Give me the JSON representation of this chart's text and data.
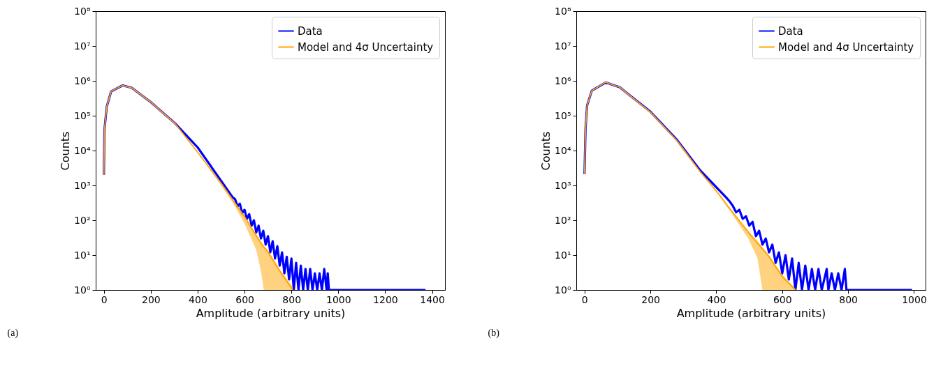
{
  "chart_data": [
    {
      "type": "line",
      "xlabel": "Amplitude (arbitrary units)",
      "ylabel": "Counts",
      "log": "y",
      "legend": "top right",
      "annotations": [
        "(a)"
      ],
      "xlim": [
        -35,
        1455
      ],
      "xticks": [
        0,
        200,
        400,
        600,
        800,
        1000,
        1200,
        1400
      ],
      "ylim": [
        1,
        100000000
      ],
      "yticks": [
        {
          "value": 1,
          "label": "10⁰"
        },
        {
          "value": 10,
          "label": "10¹"
        },
        {
          "value": 100,
          "label": "10²"
        },
        {
          "value": 1000,
          "label": "10³"
        },
        {
          "value": 10000,
          "label": "10⁴"
        },
        {
          "value": 100000,
          "label": "10⁵"
        },
        {
          "value": 1000000,
          "label": "10⁶"
        },
        {
          "value": 10000000,
          "label": "10⁷"
        },
        {
          "value": 100000000,
          "label": "10⁸"
        }
      ],
      "series": [
        {
          "name": "Data",
          "color": "#0000ff",
          "x": [
            0,
            2,
            12,
            31,
            80,
            119,
            200,
            304,
            400,
            450,
            500,
            550,
            560,
            570,
            580,
            590,
            600,
            610,
            620,
            630,
            640,
            650,
            660,
            670,
            680,
            690,
            700,
            710,
            720,
            730,
            740,
            750,
            760,
            770,
            780,
            790,
            800,
            810,
            820,
            830,
            840,
            850,
            860,
            870,
            880,
            890,
            900,
            910,
            920,
            930,
            940,
            950,
            955,
            960,
            1372
          ],
          "values": [
            2000,
            37000,
            180000,
            500000,
            740000,
            630000,
            245000,
            60000,
            12300,
            4100,
            1350,
            450,
            400,
            250,
            300,
            160,
            200,
            110,
            150,
            70,
            100,
            45,
            70,
            30,
            50,
            20,
            35,
            12,
            25,
            8,
            18,
            5,
            12,
            3,
            9,
            2,
            8,
            1,
            6,
            1,
            5,
            1,
            4,
            1,
            4,
            1,
            3,
            1,
            3,
            1,
            4,
            1,
            3,
            1,
            1
          ]
        },
        {
          "name": "Model and 4σ Uncertainty",
          "color": "#ffa500",
          "x": [
            0,
            2,
            12,
            31,
            80,
            119,
            200,
            304,
            400,
            450,
            500,
            550,
            600,
            650,
            670,
            682,
            700,
            750,
            806
          ],
          "values": [
            2000,
            37000,
            180000,
            500000,
            740000,
            630000,
            245000,
            59000,
            8900,
            3200,
            1150,
            380,
            126,
            36,
            22,
            17,
            12,
            3.5,
            1
          ],
          "lower": [
            2000,
            37000,
            180000,
            500000,
            740000,
            630000,
            245000,
            59000,
            8900,
            3000,
            1000,
            320,
            80,
            14,
            3.5,
            1,
            1,
            1,
            1
          ],
          "upper": [
            2000,
            37000,
            180000,
            500000,
            740000,
            630000,
            245000,
            59000,
            8900,
            3300,
            1200,
            400,
            135,
            40,
            25,
            19,
            14,
            4,
            1.2
          ]
        }
      ]
    },
    {
      "type": "line",
      "xlabel": "Amplitude (arbitrary units)",
      "ylabel": "Counts",
      "log": "y",
      "legend": "top right",
      "annotations": [
        "(b)"
      ],
      "xlim": [
        -25,
        1035
      ],
      "xticks": [
        0,
        200,
        400,
        600,
        800,
        1000
      ],
      "ylim": [
        1,
        100000000
      ],
      "yticks": [
        {
          "value": 1,
          "label": "10⁰"
        },
        {
          "value": 10,
          "label": "10¹"
        },
        {
          "value": 100,
          "label": "10²"
        },
        {
          "value": 1000,
          "label": "10³"
        },
        {
          "value": 10000,
          "label": "10⁴"
        },
        {
          "value": 100000,
          "label": "10⁵"
        },
        {
          "value": 1000000,
          "label": "10⁶"
        },
        {
          "value": 10000000,
          "label": "10⁷"
        },
        {
          "value": 100000000,
          "label": "10⁸"
        }
      ],
      "series": [
        {
          "name": "Data",
          "color": "#0000ff",
          "x": [
            0,
            3,
            8,
            22,
            64,
            106,
            200,
            281,
            351,
            400,
            430,
            440,
            450,
            460,
            470,
            480,
            490,
            500,
            510,
            520,
            530,
            540,
            550,
            560,
            570,
            580,
            590,
            600,
            610,
            620,
            630,
            640,
            650,
            660,
            670,
            680,
            690,
            700,
            710,
            720,
            735,
            740,
            750,
            760,
            770,
            780,
            790,
            795,
            994
          ],
          "values": [
            2100,
            42000,
            200000,
            520000,
            900000,
            660000,
            130000,
            20000,
            2700,
            890,
            450,
            350,
            260,
            170,
            200,
            110,
            130,
            70,
            90,
            35,
            50,
            20,
            30,
            12,
            20,
            6,
            12,
            3,
            10,
            2,
            8,
            1,
            6,
            1,
            5,
            1,
            4,
            1,
            4,
            1,
            4,
            1,
            3,
            1,
            3,
            1,
            4,
            1,
            1
          ]
        },
        {
          "name": "Model and 4σ Uncertainty",
          "color": "#ffa500",
          "x": [
            0,
            3,
            8,
            22,
            64,
            106,
            200,
            281,
            351,
            400,
            455,
            497,
            525,
            540,
            560,
            600,
            640
          ],
          "values": [
            2100,
            42000,
            200000,
            520000,
            910000,
            660000,
            126000,
            19000,
            2450,
            690,
            145,
            45,
            22,
            15,
            9,
            2.4,
            1
          ],
          "lower": [
            2100,
            42000,
            200000,
            520000,
            910000,
            660000,
            126000,
            19000,
            2450,
            650,
            120,
            30,
            8,
            1,
            1,
            1,
            1
          ],
          "upper": [
            2100,
            42000,
            200000,
            520000,
            910000,
            660000,
            126000,
            19000,
            2450,
            720,
            155,
            50,
            25,
            17,
            10,
            2.8,
            1.1
          ]
        }
      ]
    }
  ]
}
